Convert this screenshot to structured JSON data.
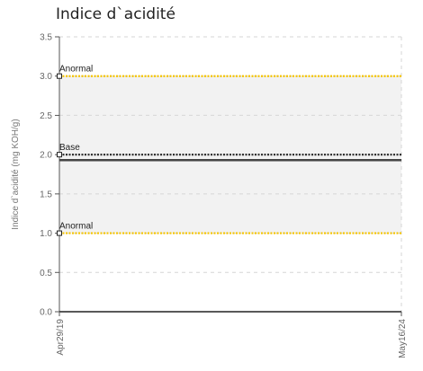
{
  "chart_data": {
    "type": "line",
    "title": "Indice d`acidité",
    "ylabel": "Indice d`acidité (mg KOH/g)",
    "xlabel": "",
    "ylim": [
      0,
      3.5
    ],
    "yticks": [
      0,
      0.5,
      1.0,
      1.5,
      2.0,
      2.5,
      3.0,
      3.5
    ],
    "ytick_labels": [
      "0.0",
      "0.5",
      "1.0",
      "1.5",
      "2.0",
      "2.5",
      "3.0",
      "3.5"
    ],
    "x": [
      "Apr29/19",
      "May16/24"
    ],
    "xtick_labels": [
      "Apr29/19",
      "May16/24"
    ],
    "grid": true,
    "band": {
      "from": 1.0,
      "to": 3.0,
      "color": "#f2f2f2"
    },
    "reference_lines": [
      {
        "label": "Anormal",
        "value": 3.0,
        "color": "#f5c400",
        "style": "dotted"
      },
      {
        "label": "Base",
        "value": 2.0,
        "color": "#333333",
        "style": "dotted"
      },
      {
        "label": "Anormal",
        "value": 1.0,
        "color": "#f5c400",
        "style": "dotted"
      }
    ],
    "series": [
      {
        "values": [
          1.93,
          1.93
        ],
        "color": "#444444"
      }
    ]
  }
}
